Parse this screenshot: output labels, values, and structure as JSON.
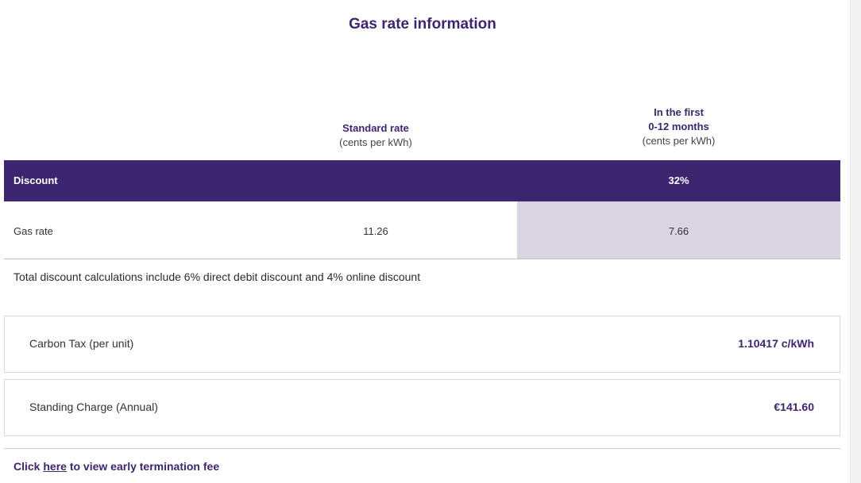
{
  "page": {
    "title": "Gas rate information"
  },
  "columns": {
    "standard": {
      "heading": "Standard rate",
      "unit": "(cents per kWh)"
    },
    "first_period": {
      "heading_line1": "In the first",
      "heading_line2": "0-12 months",
      "unit": "(cents per kWh)"
    }
  },
  "discount_row": {
    "label": "Discount",
    "value": "32%"
  },
  "gas_rate_row": {
    "label": "Gas rate",
    "standard_value": "11.26",
    "discounted_value": "7.66"
  },
  "note": "Total discount calculations include 6% direct debit discount and 4% online discount",
  "charges": [
    {
      "label": "Carbon Tax (per unit)",
      "value": "1.10417 c/kWh"
    },
    {
      "label": "Standing Charge (Annual)",
      "value": "€141.60"
    }
  ],
  "footer": {
    "prefix": "Click",
    "link_text": "here",
    "suffix": "to view early termination fee"
  },
  "colors": {
    "brand_purple": "#3d2570",
    "highlight_cell": "#d9d3e3"
  }
}
